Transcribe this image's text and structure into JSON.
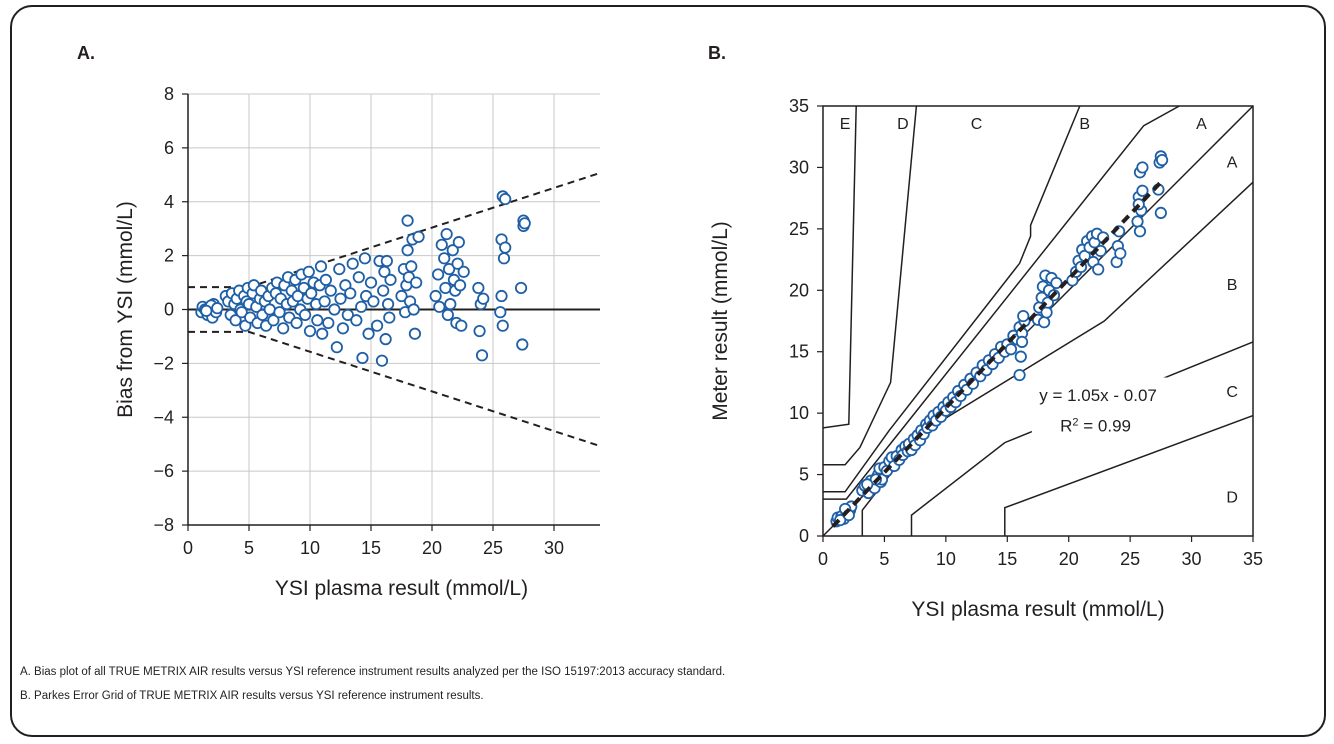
{
  "panel_a_label": "A.",
  "panel_b_label": "B.",
  "captions": [
    "A. Bias plot of all TRUE METRIX AIR results versus YSI reference instrument results analyzed per the ISO 15197:2013 accuracy standard.",
    "B. Parkes Error Grid of TRUE METRIX AIR results versus YSI reference instrument results."
  ],
  "colors": {
    "marker_edge": "#1f5fa6",
    "line": "#231f20",
    "grid": "#c8c8c8"
  },
  "chart_data": [
    {
      "type": "scatter",
      "panel": "A.",
      "title": "",
      "xlabel": "YSI plasma result (mmol/L)",
      "ylabel": "Bias from YSI (mmol/L)",
      "xlim": [
        0,
        35
      ],
      "ylim": [
        -8,
        8
      ],
      "x_ticks": [
        0,
        5,
        10,
        15,
        20,
        25,
        30,
        35
      ],
      "y_ticks": [
        -8,
        -6,
        -4,
        -2,
        0,
        2,
        4,
        6,
        8
      ],
      "y_tick_labels": [
        "−8",
        "−6",
        "−4",
        "−2",
        "0",
        "2",
        "4",
        "6",
        "8"
      ],
      "grid": true,
      "reference_lines": {
        "zero": [
          [
            0,
            0
          ],
          [
            35,
            0
          ]
        ],
        "upper_limit": [
          [
            0,
            0.83
          ],
          [
            5,
            0.83
          ],
          [
            35,
            5.25
          ]
        ],
        "lower_limit": [
          [
            0,
            -0.83
          ],
          [
            5,
            -0.83
          ],
          [
            35,
            -5.25
          ]
        ]
      },
      "points": [
        [
          1.1,
          -0.1
        ],
        [
          1.2,
          0.1
        ],
        [
          1.4,
          0.0
        ],
        [
          1.6,
          -0.2
        ],
        [
          1.8,
          0.1
        ],
        [
          2.0,
          -0.3
        ],
        [
          2.1,
          0.2
        ],
        [
          2.2,
          0.0
        ],
        [
          2.3,
          -0.1
        ],
        [
          1.9,
          0.15
        ],
        [
          1.5,
          -0.05
        ],
        [
          2.4,
          0.05
        ],
        [
          3.1,
          0.5
        ],
        [
          3.3,
          0.3
        ],
        [
          3.5,
          -0.2
        ],
        [
          3.6,
          0.6
        ],
        [
          3.8,
          0.2
        ],
        [
          3.9,
          -0.4
        ],
        [
          4.0,
          0.4
        ],
        [
          4.2,
          0.7
        ],
        [
          4.3,
          0.0
        ],
        [
          4.4,
          -0.1
        ],
        [
          4.6,
          0.5
        ],
        [
          4.7,
          -0.6
        ],
        [
          4.8,
          0.3
        ],
        [
          4.9,
          0.8
        ],
        [
          5.0,
          0.2
        ],
        [
          5.1,
          -0.3
        ],
        [
          5.3,
          0.6
        ],
        [
          5.4,
          0.9
        ],
        [
          5.6,
          0.1
        ],
        [
          5.7,
          -0.5
        ],
        [
          5.9,
          0.4
        ],
        [
          6.0,
          0.7
        ],
        [
          6.1,
          -0.2
        ],
        [
          6.3,
          0.3
        ],
        [
          6.4,
          -0.6
        ],
        [
          6.6,
          0.5
        ],
        [
          6.7,
          0.0
        ],
        [
          6.9,
          0.8
        ],
        [
          7.0,
          -0.4
        ],
        [
          7.2,
          0.6
        ],
        [
          7.3,
          1.0
        ],
        [
          7.5,
          -0.1
        ],
        [
          7.6,
          0.4
        ],
        [
          7.8,
          -0.7
        ],
        [
          7.9,
          0.9
        ],
        [
          8.1,
          0.2
        ],
        [
          8.2,
          1.2
        ],
        [
          8.3,
          -0.3
        ],
        [
          8.5,
          0.7
        ],
        [
          8.6,
          0.3
        ],
        [
          8.8,
          1.1
        ],
        [
          8.9,
          -0.5
        ],
        [
          9.0,
          0.5
        ],
        [
          9.2,
          0.0
        ],
        [
          9.3,
          1.3
        ],
        [
          9.5,
          0.8
        ],
        [
          9.6,
          -0.2
        ],
        [
          9.8,
          0.4
        ],
        [
          9.9,
          1.4
        ],
        [
          10.0,
          -0.8
        ],
        [
          10.1,
          0.6
        ],
        [
          10.3,
          1.0
        ],
        [
          10.5,
          0.2
        ],
        [
          10.6,
          -0.4
        ],
        [
          10.8,
          0.9
        ],
        [
          10.9,
          1.6
        ],
        [
          11.0,
          -0.9
        ],
        [
          11.2,
          0.3
        ],
        [
          11.3,
          1.1
        ],
        [
          11.5,
          -0.5
        ],
        [
          11.7,
          0.7
        ],
        [
          12.0,
          0.0
        ],
        [
          12.2,
          -1.4
        ],
        [
          12.4,
          1.5
        ],
        [
          12.5,
          0.4
        ],
        [
          12.7,
          -0.7
        ],
        [
          12.9,
          0.9
        ],
        [
          13.1,
          -0.2
        ],
        [
          13.3,
          0.6
        ],
        [
          13.5,
          1.7
        ],
        [
          13.8,
          -0.4
        ],
        [
          14.0,
          1.2
        ],
        [
          14.2,
          0.1
        ],
        [
          14.3,
          -1.8
        ],
        [
          14.5,
          1.9
        ],
        [
          14.6,
          0.5
        ],
        [
          14.8,
          -0.9
        ],
        [
          15.0,
          1.0
        ],
        [
          15.2,
          0.3
        ],
        [
          15.5,
          -0.6
        ],
        [
          15.7,
          1.8
        ],
        [
          15.9,
          -1.9
        ],
        [
          16.0,
          0.7
        ],
        [
          16.1,
          1.4
        ],
        [
          16.2,
          -1.1
        ],
        [
          16.3,
          1.8
        ],
        [
          16.4,
          0.2
        ],
        [
          16.5,
          -0.3
        ],
        [
          16.6,
          1.1
        ],
        [
          17.5,
          0.5
        ],
        [
          17.7,
          1.5
        ],
        [
          17.8,
          -0.1
        ],
        [
          17.9,
          0.9
        ],
        [
          18.0,
          2.2
        ],
        [
          18.0,
          3.3
        ],
        [
          18.1,
          1.2
        ],
        [
          18.2,
          0.3
        ],
        [
          18.3,
          1.6
        ],
        [
          18.4,
          2.6
        ],
        [
          18.5,
          0.0
        ],
        [
          18.6,
          -0.9
        ],
        [
          18.7,
          1.0
        ],
        [
          18.9,
          2.7
        ],
        [
          20.3,
          0.5
        ],
        [
          20.5,
          1.3
        ],
        [
          20.6,
          0.1
        ],
        [
          20.8,
          2.4
        ],
        [
          21.0,
          1.9
        ],
        [
          21.1,
          0.8
        ],
        [
          21.2,
          2.8
        ],
        [
          21.3,
          -0.2
        ],
        [
          21.4,
          1.5
        ],
        [
          21.5,
          0.2
        ],
        [
          21.7,
          2.2
        ],
        [
          21.8,
          1.1
        ],
        [
          21.9,
          0.7
        ],
        [
          22.0,
          -0.5
        ],
        [
          22.1,
          1.7
        ],
        [
          22.2,
          2.5
        ],
        [
          22.3,
          0.9
        ],
        [
          22.4,
          -0.6
        ],
        [
          22.6,
          1.4
        ],
        [
          23.8,
          0.8
        ],
        [
          23.9,
          -0.8
        ],
        [
          24.0,
          0.2
        ],
        [
          24.1,
          -1.7
        ],
        [
          24.2,
          0.4
        ],
        [
          25.6,
          -0.1
        ],
        [
          25.7,
          0.5
        ],
        [
          25.7,
          2.6
        ],
        [
          25.8,
          4.2
        ],
        [
          25.8,
          -0.6
        ],
        [
          25.9,
          1.9
        ],
        [
          26.0,
          2.3
        ],
        [
          26.0,
          4.1
        ],
        [
          27.3,
          0.8
        ],
        [
          27.4,
          -1.3
        ],
        [
          27.5,
          3.1
        ],
        [
          27.5,
          3.3
        ],
        [
          27.6,
          3.2
        ]
      ]
    },
    {
      "type": "scatter",
      "panel": "B.",
      "title": "",
      "xlabel": "YSI plasma result (mmol/L)",
      "ylabel": "Meter result (mmol/L)",
      "xlim": [
        0,
        35
      ],
      "ylim": [
        0,
        35
      ],
      "x_ticks": [
        0,
        5,
        10,
        15,
        20,
        25,
        30,
        35
      ],
      "y_ticks": [
        0,
        5,
        10,
        15,
        20,
        25,
        30,
        35
      ],
      "grid": false,
      "zone_labels": [
        {
          "text": "E",
          "x": 1.8,
          "y": 33.6
        },
        {
          "text": "D",
          "x": 6.5,
          "y": 33.6
        },
        {
          "text": "C",
          "x": 12.5,
          "y": 33.6
        },
        {
          "text": "B",
          "x": 21.3,
          "y": 33.6
        },
        {
          "text": "A",
          "x": 30.8,
          "y": 33.6
        },
        {
          "text": "A",
          "x": 33.3,
          "y": 30.5
        },
        {
          "text": "B",
          "x": 33.3,
          "y": 20.5
        },
        {
          "text": "C",
          "x": 33.3,
          "y": 11.8
        },
        {
          "text": "D",
          "x": 33.3,
          "y": 3.2
        }
      ],
      "zone_boundaries": [
        [
          [
            0.0,
            8.8
          ],
          [
            2.1,
            9.1
          ],
          [
            2.7,
            35
          ]
        ],
        [
          [
            0.0,
            5.8
          ],
          [
            1.8,
            5.8
          ],
          [
            3.0,
            7.2
          ],
          [
            5.5,
            12.5
          ],
          [
            7.6,
            35
          ]
        ],
        [
          [
            0.0,
            3.6
          ],
          [
            1.8,
            3.6
          ],
          [
            5.4,
            8.6
          ],
          [
            16.0,
            22.2
          ],
          [
            16.9,
            24.4
          ],
          [
            16.9,
            25.3
          ],
          [
            20.9,
            35
          ]
        ],
        [
          [
            0.0,
            3.0
          ],
          [
            1.9,
            3.0
          ],
          [
            26.1,
            33.4
          ],
          [
            29.0,
            35
          ]
        ],
        [
          [
            3.2,
            0.0
          ],
          [
            3.2,
            2.1
          ],
          [
            8.2,
            8.5
          ],
          [
            22.9,
            17.5
          ],
          [
            35.0,
            28.8
          ]
        ],
        [
          [
            7.2,
            0.0
          ],
          [
            7.2,
            1.7
          ],
          [
            14.8,
            7.6
          ],
          [
            35.0,
            15.8
          ]
        ],
        [
          [
            14.8,
            0.0
          ],
          [
            14.8,
            2.3
          ],
          [
            35.0,
            9.8
          ]
        ]
      ],
      "identity_line": [
        [
          0,
          0
        ],
        [
          35,
          35
        ]
      ],
      "regression": {
        "equation": "y = 1.05x - 0.07",
        "r2_prefix": "R",
        "r2_suffix": " = 0.99",
        "slope": 1.05,
        "intercept": -0.07,
        "x_range": [
          0.8,
          27.5
        ]
      },
      "points": [
        [
          1.1,
          1.2
        ],
        [
          1.2,
          1.5
        ],
        [
          1.5,
          1.6
        ],
        [
          1.7,
          1.4
        ],
        [
          1.9,
          2.0
        ],
        [
          2.0,
          1.8
        ],
        [
          2.2,
          2.1
        ],
        [
          2.3,
          2.4
        ],
        [
          1.8,
          2.2
        ],
        [
          1.4,
          1.3
        ],
        [
          2.1,
          1.7
        ],
        [
          3.2,
          3.7
        ],
        [
          3.4,
          4.1
        ],
        [
          3.7,
          3.5
        ],
        [
          3.9,
          4.5
        ],
        [
          4.0,
          4.2
        ],
        [
          4.2,
          3.9
        ],
        [
          4.4,
          4.8
        ],
        [
          4.5,
          5.0
        ],
        [
          4.7,
          4.4
        ],
        [
          4.9,
          5.3
        ],
        [
          4.8,
          4.6
        ],
        [
          4.3,
          4.6
        ],
        [
          3.6,
          4.2
        ],
        [
          4.6,
          5.5
        ],
        [
          5.0,
          5.6
        ],
        [
          5.2,
          5.3
        ],
        [
          5.4,
          6.1
        ],
        [
          5.6,
          6.4
        ],
        [
          5.8,
          5.7
        ],
        [
          6.0,
          6.5
        ],
        [
          6.2,
          6.2
        ],
        [
          6.4,
          7.0
        ],
        [
          6.5,
          6.6
        ],
        [
          6.7,
          7.3
        ],
        [
          6.9,
          6.9
        ],
        [
          7.0,
          7.5
        ],
        [
          7.2,
          7.0
        ],
        [
          7.4,
          7.9
        ],
        [
          7.5,
          7.4
        ],
        [
          7.7,
          8.2
        ],
        [
          7.9,
          7.8
        ],
        [
          8.0,
          8.6
        ],
        [
          8.2,
          8.3
        ],
        [
          8.4,
          9.1
        ],
        [
          8.5,
          8.8
        ],
        [
          8.7,
          9.4
        ],
        [
          8.9,
          9.0
        ],
        [
          9.0,
          9.8
        ],
        [
          9.2,
          9.4
        ],
        [
          9.4,
          10.1
        ],
        [
          9.6,
          9.7
        ],
        [
          9.8,
          10.5
        ],
        [
          10.0,
          10.2
        ],
        [
          10.2,
          10.9
        ],
        [
          10.4,
          10.5
        ],
        [
          10.6,
          11.3
        ],
        [
          10.8,
          10.9
        ],
        [
          11.0,
          11.8
        ],
        [
          11.2,
          11.4
        ],
        [
          11.5,
          12.3
        ],
        [
          11.7,
          11.9
        ],
        [
          12.0,
          12.8
        ],
        [
          12.2,
          12.4
        ],
        [
          12.5,
          13.3
        ],
        [
          12.8,
          13.0
        ],
        [
          13.0,
          13.9
        ],
        [
          13.3,
          13.5
        ],
        [
          13.5,
          14.3
        ],
        [
          13.8,
          14.0
        ],
        [
          14.0,
          14.8
        ],
        [
          14.3,
          14.5
        ],
        [
          14.5,
          15.4
        ],
        [
          14.8,
          15.0
        ],
        [
          15.0,
          15.6
        ],
        [
          15.3,
          15.2
        ],
        [
          15.5,
          16.3
        ],
        [
          15.8,
          16.0
        ],
        [
          16.0,
          17.0
        ],
        [
          16.2,
          16.5
        ],
        [
          16.4,
          17.5
        ],
        [
          16.0,
          13.1
        ],
        [
          16.1,
          14.6
        ],
        [
          16.2,
          15.8
        ],
        [
          16.3,
          17.9
        ],
        [
          17.5,
          17.6
        ],
        [
          17.6,
          18.6
        ],
        [
          17.8,
          19.4
        ],
        [
          17.9,
          20.3
        ],
        [
          18.0,
          17.4
        ],
        [
          18.1,
          21.2
        ],
        [
          18.2,
          18.2
        ],
        [
          18.3,
          19.0
        ],
        [
          18.4,
          20.0
        ],
        [
          18.6,
          21.0
        ],
        [
          18.8,
          19.6
        ],
        [
          19.0,
          20.6
        ],
        [
          20.3,
          20.8
        ],
        [
          20.6,
          21.5
        ],
        [
          20.8,
          22.4
        ],
        [
          21.0,
          21.9
        ],
        [
          21.1,
          23.3
        ],
        [
          21.3,
          22.8
        ],
        [
          21.5,
          24.0
        ],
        [
          21.7,
          23.5
        ],
        [
          21.9,
          24.4
        ],
        [
          22.0,
          22.3
        ],
        [
          22.1,
          23.9
        ],
        [
          22.3,
          24.6
        ],
        [
          22.4,
          21.7
        ],
        [
          22.6,
          23.2
        ],
        [
          22.8,
          24.3
        ],
        [
          23.9,
          22.3
        ],
        [
          24.0,
          23.6
        ],
        [
          24.1,
          24.8
        ],
        [
          24.2,
          23.0
        ],
        [
          25.6,
          25.6
        ],
        [
          25.7,
          27.6
        ],
        [
          25.8,
          29.6
        ],
        [
          25.9,
          26.5
        ],
        [
          26.0,
          28.1
        ],
        [
          25.8,
          24.8
        ],
        [
          26.0,
          30.0
        ],
        [
          25.7,
          27.0
        ],
        [
          27.3,
          28.2
        ],
        [
          27.4,
          30.4
        ],
        [
          27.5,
          30.9
        ],
        [
          27.5,
          26.3
        ],
        [
          27.6,
          30.6
        ]
      ]
    }
  ]
}
